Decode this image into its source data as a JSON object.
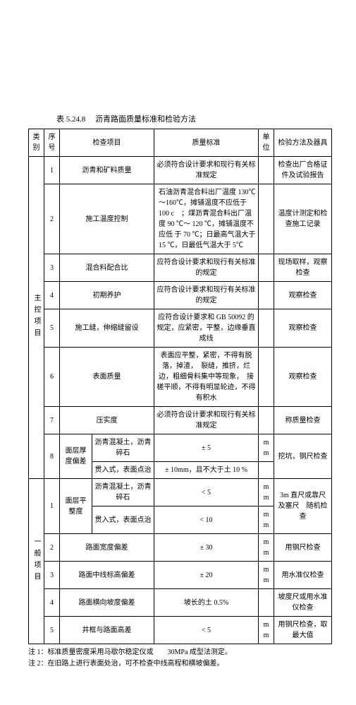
{
  "caption_pre": "表 5.24.8",
  "caption": "沥青路面质量标准和检验方法",
  "head_cat": "类别",
  "head_seq": "序号",
  "head_item": "检查项目",
  "head_std": "质量标准",
  "head_unit": "单位",
  "head_meth": "检验方法及器具",
  "cat1": "主 控 项 目",
  "cat2": "一 般 项 目",
  "r1_seq": "1",
  "r1_item": "沥青和矿料质量",
  "r1_std": "必须符合设计要求和现行有关标准规定",
  "r1_unit": "",
  "r1_meth": "检查出厂合格证件及试验报告",
  "r2_seq": "2",
  "r2_item": "施工温度控制",
  "r2_std": "石油沥青混合料出厂温度 130℃～160℃，摊铺温度不应低于　　100 c　；煤沥青混合料出厂温度 90 ℃～ 120 ℃，摊铺温度不应低 于 70 ℃；日最高气温大于　　　15 ℃，日最低气温大于 5℃",
  "r2_unit": "",
  "r2_meth": "温度计测定和检查施工记录",
  "r3_seq": "3",
  "r3_item": "混合料配合比",
  "r3_std": "应符合设计要求和现行有关标准的规定",
  "r3_unit": "",
  "r3_meth": "现场取样，观察检查",
  "r4_seq": "4",
  "r4_item": "初期养护",
  "r4_std": "应符合设计要求和现行有关标准的规定",
  "r4_unit": "",
  "r4_meth": "观察检查",
  "r5_seq": "5",
  "r5_item": "施工缝，伸缩缝留设",
  "r5_std": "应符合设计要求和 GB 50092 的规定，应紧密，平整，边缘垂直成线",
  "r5_unit": "",
  "r5_meth": "观察检查",
  "r6_seq": "6",
  "r6_item": "表面质量",
  "r6_std": "表面应平整，紧密，不得有脱落，掉渣，　裂缝，推挤，烂边，粗细骨料集中等现象，　接槎平顺，不得有明显轮迹，不得有积水",
  "r6_unit": "",
  "r6_meth": "观察检查",
  "r7_seq": "7",
  "r7_item": "压实度",
  "r7_std": "必须符合设计要求和现行有关标准规定",
  "r7_unit": "",
  "r7_meth": "称质量检查",
  "r8_seq": "8",
  "r8_sub": "面层厚度偏差",
  "r8_a": "沥青混凝土，沥青碎石",
  "r8_a_std": "± 5",
  "r8_a_unit": "mm",
  "r8_meth": "挖坑，钢尺检查",
  "r8_b": "贯入式，表面点治",
  "r8_b_std": "± 10mm，且不大于土 10 %",
  "r8_b_unit": "",
  "g1_seq": "1",
  "g1_sub": "面层平整度",
  "g1_a": "沥青混凝土，沥青碎石",
  "g1_a_std": "< 5",
  "g1_a_unit": "mm",
  "g1_meth": "3m 直尺或靠尺及塞尺　随机检查",
  "g1_b": "贯入式，表面点治",
  "g1_b_std": "< 10",
  "g1_b_unit": "mm",
  "g2_seq": "2",
  "g2_item": "路面宽度偏差",
  "g2_std": "± 30",
  "g2_unit": "mm",
  "g2_meth": "用钢尺检查",
  "g3_seq": "3",
  "g3_item": "路面中线标高偏差",
  "g3_std": "± 20",
  "g3_unit": "mm",
  "g3_meth": "用水准仪检查",
  "g4_seq": "4",
  "g4_item": "路面横向坡度偏差",
  "g4_std": "坡长的土 0.5%",
  "g4_unit": "",
  "g4_meth": "坡度尺或用水准仪检查",
  "g5_seq": "5",
  "g5_item": "井框与路面高差",
  "g5_std": "< 5",
  "g5_unit": "mm",
  "g5_meth": "用钢尺检查，取最大值",
  "note1": "注 1：标准质量密度采用马歇尔稳定仪或　　30MPa 成型法测定。",
  "note2": "注 2：在旧路上进行表面处治，可不检查中线高程和横坡偏差。"
}
